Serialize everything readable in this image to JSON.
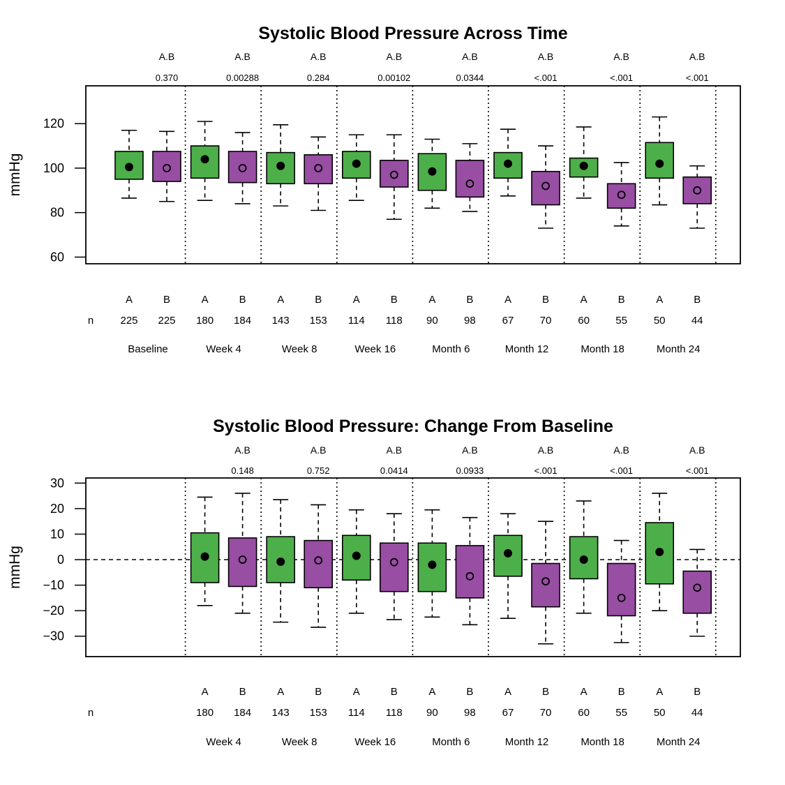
{
  "colors": {
    "A": "#4daf4a",
    "B": "#984ea3"
  },
  "group_labels": [
    "A",
    "B"
  ],
  "n_label": "n",
  "chart_data": [
    {
      "type": "box",
      "title": "Systolic Blood Pressure Across Time",
      "ylabel": "mmHg",
      "ylim": [
        57,
        137
      ],
      "yticks": [
        60,
        80,
        100,
        120
      ],
      "zero_line": false,
      "visits": [
        {
          "label": "Baseline",
          "pair": "A.B",
          "p": "0.370",
          "A": {
            "n": "225",
            "whisker_low": 86.5,
            "q1": 95,
            "mean": 100.5,
            "q3": 107.5,
            "whisker_high": 117
          },
          "B": {
            "n": "225",
            "whisker_low": 85,
            "q1": 94,
            "mean": 100,
            "q3": 107.5,
            "whisker_high": 116.5
          }
        },
        {
          "label": "Week 4",
          "pair": "A.B",
          "p": "0.00288",
          "A": {
            "n": "180",
            "whisker_low": 85.5,
            "q1": 95.5,
            "mean": 104,
            "q3": 110,
            "whisker_high": 121
          },
          "B": {
            "n": "184",
            "whisker_low": 84,
            "q1": 93.5,
            "mean": 100,
            "q3": 107.5,
            "whisker_high": 116
          }
        },
        {
          "label": "Week 8",
          "pair": "A.B",
          "p": "0.284",
          "A": {
            "n": "143",
            "whisker_low": 83,
            "q1": 93,
            "mean": 101,
            "q3": 107,
            "whisker_high": 119.5
          },
          "B": {
            "n": "153",
            "whisker_low": 81,
            "q1": 93,
            "mean": 100,
            "q3": 106,
            "whisker_high": 114
          }
        },
        {
          "label": "Week 16",
          "pair": "A.B",
          "p": "0.00102",
          "A": {
            "n": "114",
            "whisker_low": 85.5,
            "q1": 95.5,
            "mean": 102,
            "q3": 107.5,
            "whisker_high": 115
          },
          "B": {
            "n": "118",
            "whisker_low": 77,
            "q1": 91.5,
            "mean": 97,
            "q3": 103.5,
            "whisker_high": 115
          }
        },
        {
          "label": "Month 6",
          "pair": "A.B",
          "p": "0.0344",
          "A": {
            "n": "90",
            "whisker_low": 82,
            "q1": 90,
            "mean": 98.5,
            "q3": 106.5,
            "whisker_high": 113
          },
          "B": {
            "n": "98",
            "whisker_low": 80.5,
            "q1": 87,
            "mean": 93,
            "q3": 103.5,
            "whisker_high": 111
          }
        },
        {
          "label": "Month 12",
          "pair": "A.B",
          "p": "<.001",
          "A": {
            "n": "67",
            "whisker_low": 87.5,
            "q1": 95.5,
            "mean": 102,
            "q3": 107,
            "whisker_high": 117.5
          },
          "B": {
            "n": "70",
            "whisker_low": 73,
            "q1": 83.5,
            "mean": 92,
            "q3": 98.5,
            "whisker_high": 110
          }
        },
        {
          "label": "Month 18",
          "pair": "A.B",
          "p": "<.001",
          "A": {
            "n": "60",
            "whisker_low": 86.5,
            "q1": 96,
            "mean": 101,
            "q3": 104.5,
            "whisker_high": 118.5
          },
          "B": {
            "n": "55",
            "whisker_low": 74,
            "q1": 82,
            "mean": 88,
            "q3": 93,
            "whisker_high": 102.5
          }
        },
        {
          "label": "Month 24",
          "pair": "A.B",
          "p": "<.001",
          "A": {
            "n": "50",
            "whisker_low": 83.5,
            "q1": 95.5,
            "mean": 102,
            "q3": 111.5,
            "whisker_high": 123
          },
          "B": {
            "n": "44",
            "whisker_low": 73,
            "q1": 84,
            "mean": 90,
            "q3": 96,
            "whisker_high": 101
          }
        }
      ]
    },
    {
      "type": "box",
      "title": "Systolic Blood Pressure: Change From Baseline",
      "ylabel": "mmHg",
      "ylim": [
        -38,
        32
      ],
      "yticks": [
        -30,
        -20,
        -10,
        0,
        10,
        20,
        30
      ],
      "zero_line": true,
      "visits": [
        {
          "label": "",
          "pair": "",
          "p": "",
          "A": null,
          "B": null
        },
        {
          "label": "Week 4",
          "pair": "A.B",
          "p": "0.148",
          "A": {
            "n": "180",
            "whisker_low": -18,
            "q1": -9,
            "mean": 1.2,
            "q3": 10.5,
            "whisker_high": 24.5
          },
          "B": {
            "n": "184",
            "whisker_low": -21,
            "q1": -10.5,
            "mean": 0,
            "q3": 8.5,
            "whisker_high": 26
          }
        },
        {
          "label": "Week 8",
          "pair": "A.B",
          "p": "0.752",
          "A": {
            "n": "143",
            "whisker_low": -24.5,
            "q1": -9,
            "mean": -0.8,
            "q3": 9,
            "whisker_high": 23.5
          },
          "B": {
            "n": "153",
            "whisker_low": -26.5,
            "q1": -11,
            "mean": -0.3,
            "q3": 7.5,
            "whisker_high": 21.5
          }
        },
        {
          "label": "Week 16",
          "pair": "A.B",
          "p": "0.0414",
          "A": {
            "n": "114",
            "whisker_low": -21,
            "q1": -8,
            "mean": 1.5,
            "q3": 9.5,
            "whisker_high": 19.5
          },
          "B": {
            "n": "118",
            "whisker_low": -23.5,
            "q1": -12.5,
            "mean": -1,
            "q3": 6.5,
            "whisker_high": 18
          }
        },
        {
          "label": "Month 6",
          "pair": "A.B",
          "p": "0.0933",
          "A": {
            "n": "90",
            "whisker_low": -22.5,
            "q1": -12.5,
            "mean": -2,
            "q3": 6.5,
            "whisker_high": 19.5
          },
          "B": {
            "n": "98",
            "whisker_low": -25.5,
            "q1": -15,
            "mean": -6.5,
            "q3": 5.5,
            "whisker_high": 16.5
          }
        },
        {
          "label": "Month 12",
          "pair": "A.B",
          "p": "<.001",
          "A": {
            "n": "67",
            "whisker_low": -23,
            "q1": -6.5,
            "mean": 2.5,
            "q3": 9.5,
            "whisker_high": 18
          },
          "B": {
            "n": "70",
            "whisker_low": -33,
            "q1": -18.5,
            "mean": -8.5,
            "q3": -1.5,
            "whisker_high": 15
          }
        },
        {
          "label": "Month 18",
          "pair": "A.B",
          "p": "<.001",
          "A": {
            "n": "60",
            "whisker_low": -21,
            "q1": -7.5,
            "mean": 0,
            "q3": 9,
            "whisker_high": 23
          },
          "B": {
            "n": "55",
            "whisker_low": -32.5,
            "q1": -22,
            "mean": -15,
            "q3": -1.5,
            "whisker_high": 7.5
          }
        },
        {
          "label": "Month 24",
          "pair": "A.B",
          "p": "<.001",
          "A": {
            "n": "50",
            "whisker_low": -20,
            "q1": -9.5,
            "mean": 3,
            "q3": 14.5,
            "whisker_high": 26
          },
          "B": {
            "n": "44",
            "whisker_low": -30,
            "q1": -21,
            "mean": -11,
            "q3": -4.5,
            "whisker_high": 4
          }
        }
      ]
    }
  ]
}
